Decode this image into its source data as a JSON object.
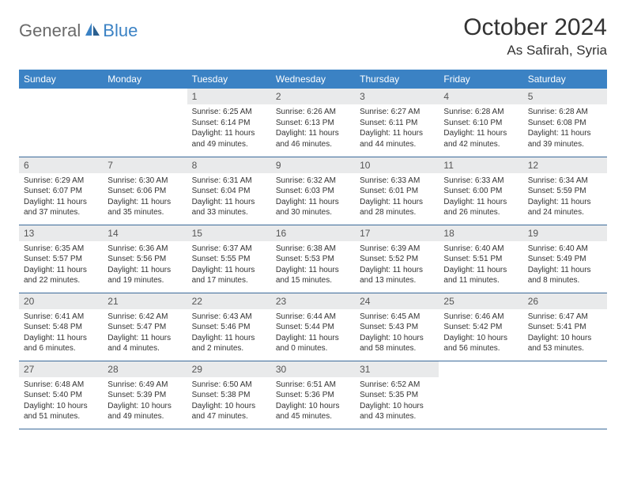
{
  "logo": {
    "text1": "General",
    "text2": "Blue"
  },
  "title": "October 2024",
  "location": "As Safirah, Syria",
  "colors": {
    "header_bg": "#3b82c4",
    "header_text": "#ffffff",
    "daynum_bg": "#e9eaeb",
    "border": "#3b6a9a",
    "logo_gray": "#6a6a6a",
    "logo_blue": "#3b82c4"
  },
  "weekdays": [
    "Sunday",
    "Monday",
    "Tuesday",
    "Wednesday",
    "Thursday",
    "Friday",
    "Saturday"
  ],
  "weeks": [
    [
      null,
      null,
      {
        "n": "1",
        "sr": "6:25 AM",
        "ss": "6:14 PM",
        "dl": "11 hours and 49 minutes."
      },
      {
        "n": "2",
        "sr": "6:26 AM",
        "ss": "6:13 PM",
        "dl": "11 hours and 46 minutes."
      },
      {
        "n": "3",
        "sr": "6:27 AM",
        "ss": "6:11 PM",
        "dl": "11 hours and 44 minutes."
      },
      {
        "n": "4",
        "sr": "6:28 AM",
        "ss": "6:10 PM",
        "dl": "11 hours and 42 minutes."
      },
      {
        "n": "5",
        "sr": "6:28 AM",
        "ss": "6:08 PM",
        "dl": "11 hours and 39 minutes."
      }
    ],
    [
      {
        "n": "6",
        "sr": "6:29 AM",
        "ss": "6:07 PM",
        "dl": "11 hours and 37 minutes."
      },
      {
        "n": "7",
        "sr": "6:30 AM",
        "ss": "6:06 PM",
        "dl": "11 hours and 35 minutes."
      },
      {
        "n": "8",
        "sr": "6:31 AM",
        "ss": "6:04 PM",
        "dl": "11 hours and 33 minutes."
      },
      {
        "n": "9",
        "sr": "6:32 AM",
        "ss": "6:03 PM",
        "dl": "11 hours and 30 minutes."
      },
      {
        "n": "10",
        "sr": "6:33 AM",
        "ss": "6:01 PM",
        "dl": "11 hours and 28 minutes."
      },
      {
        "n": "11",
        "sr": "6:33 AM",
        "ss": "6:00 PM",
        "dl": "11 hours and 26 minutes."
      },
      {
        "n": "12",
        "sr": "6:34 AM",
        "ss": "5:59 PM",
        "dl": "11 hours and 24 minutes."
      }
    ],
    [
      {
        "n": "13",
        "sr": "6:35 AM",
        "ss": "5:57 PM",
        "dl": "11 hours and 22 minutes."
      },
      {
        "n": "14",
        "sr": "6:36 AM",
        "ss": "5:56 PM",
        "dl": "11 hours and 19 minutes."
      },
      {
        "n": "15",
        "sr": "6:37 AM",
        "ss": "5:55 PM",
        "dl": "11 hours and 17 minutes."
      },
      {
        "n": "16",
        "sr": "6:38 AM",
        "ss": "5:53 PM",
        "dl": "11 hours and 15 minutes."
      },
      {
        "n": "17",
        "sr": "6:39 AM",
        "ss": "5:52 PM",
        "dl": "11 hours and 13 minutes."
      },
      {
        "n": "18",
        "sr": "6:40 AM",
        "ss": "5:51 PM",
        "dl": "11 hours and 11 minutes."
      },
      {
        "n": "19",
        "sr": "6:40 AM",
        "ss": "5:49 PM",
        "dl": "11 hours and 8 minutes."
      }
    ],
    [
      {
        "n": "20",
        "sr": "6:41 AM",
        "ss": "5:48 PM",
        "dl": "11 hours and 6 minutes."
      },
      {
        "n": "21",
        "sr": "6:42 AM",
        "ss": "5:47 PM",
        "dl": "11 hours and 4 minutes."
      },
      {
        "n": "22",
        "sr": "6:43 AM",
        "ss": "5:46 PM",
        "dl": "11 hours and 2 minutes."
      },
      {
        "n": "23",
        "sr": "6:44 AM",
        "ss": "5:44 PM",
        "dl": "11 hours and 0 minutes."
      },
      {
        "n": "24",
        "sr": "6:45 AM",
        "ss": "5:43 PM",
        "dl": "10 hours and 58 minutes."
      },
      {
        "n": "25",
        "sr": "6:46 AM",
        "ss": "5:42 PM",
        "dl": "10 hours and 56 minutes."
      },
      {
        "n": "26",
        "sr": "6:47 AM",
        "ss": "5:41 PM",
        "dl": "10 hours and 53 minutes."
      }
    ],
    [
      {
        "n": "27",
        "sr": "6:48 AM",
        "ss": "5:40 PM",
        "dl": "10 hours and 51 minutes."
      },
      {
        "n": "28",
        "sr": "6:49 AM",
        "ss": "5:39 PM",
        "dl": "10 hours and 49 minutes."
      },
      {
        "n": "29",
        "sr": "6:50 AM",
        "ss": "5:38 PM",
        "dl": "10 hours and 47 minutes."
      },
      {
        "n": "30",
        "sr": "6:51 AM",
        "ss": "5:36 PM",
        "dl": "10 hours and 45 minutes."
      },
      {
        "n": "31",
        "sr": "6:52 AM",
        "ss": "5:35 PM",
        "dl": "10 hours and 43 minutes."
      },
      null,
      null
    ]
  ],
  "labels": {
    "sunrise": "Sunrise:",
    "sunset": "Sunset:",
    "daylight": "Daylight:"
  }
}
